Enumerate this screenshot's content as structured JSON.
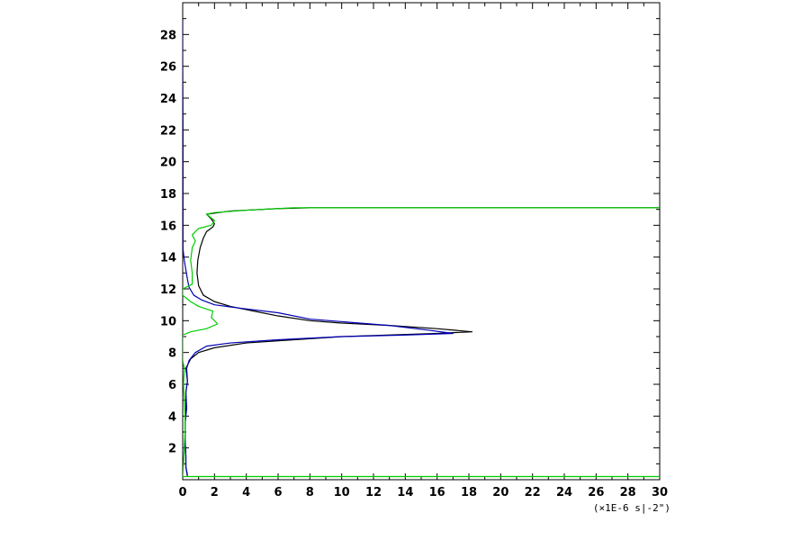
{
  "chart_data": {
    "type": "line",
    "title": "",
    "xlabel": "",
    "ylabel": "",
    "x_unit": "(×1E-6 s|-2\")",
    "xlim": [
      0,
      30
    ],
    "ylim": [
      0,
      30
    ],
    "x_ticks": [
      0,
      2,
      4,
      6,
      8,
      10,
      12,
      14,
      16,
      18,
      20,
      22,
      24,
      26,
      28,
      30
    ],
    "y_ticks": [
      2,
      4,
      6,
      8,
      10,
      12,
      14,
      16,
      18,
      20,
      22,
      24,
      26,
      28
    ],
    "grid": false,
    "colors": {
      "black": "#000000",
      "blue": "#0000b4",
      "green": "#00cc00",
      "axes": "#000000"
    },
    "series": [
      {
        "color": "#000000",
        "points": [
          [
            0.3,
            0.2
          ],
          [
            0.2,
            0.8
          ],
          [
            0.2,
            1.5
          ],
          [
            0.15,
            2.5
          ],
          [
            0.15,
            3.5
          ],
          [
            0.2,
            4.5
          ],
          [
            0.2,
            5.5
          ],
          [
            0.3,
            6.2
          ],
          [
            0.2,
            7.0
          ],
          [
            0.5,
            7.6
          ],
          [
            1.0,
            8.0
          ],
          [
            2.0,
            8.3
          ],
          [
            4.0,
            8.6
          ],
          [
            7.0,
            8.8
          ],
          [
            10.0,
            9.0
          ],
          [
            13.0,
            9.1
          ],
          [
            16.0,
            9.2
          ],
          [
            18.2,
            9.3
          ],
          [
            16.0,
            9.5
          ],
          [
            13.0,
            9.7
          ],
          [
            10.0,
            9.85
          ],
          [
            8.0,
            10.0
          ],
          [
            6.0,
            10.3
          ],
          [
            4.5,
            10.6
          ],
          [
            3.0,
            10.9
          ],
          [
            2.0,
            11.2
          ],
          [
            1.3,
            11.6
          ],
          [
            1.0,
            12.2
          ],
          [
            0.9,
            13.0
          ],
          [
            0.95,
            13.8
          ],
          [
            1.1,
            14.6
          ],
          [
            1.3,
            15.2
          ],
          [
            1.5,
            15.6
          ],
          [
            1.9,
            15.9
          ],
          [
            2.0,
            16.1
          ],
          [
            1.8,
            16.4
          ],
          [
            1.5,
            16.7
          ],
          [
            3.0,
            16.9
          ],
          [
            6.0,
            17.05
          ],
          [
            8.0,
            17.1
          ],
          [
            15.0,
            17.1
          ],
          [
            30.0,
            17.1
          ]
        ]
      },
      {
        "color": "#0000b4",
        "points": [
          [
            0.0,
            29.0
          ],
          [
            0.0,
            26.5
          ],
          [
            0.02,
            22.0
          ],
          [
            0.02,
            14.5
          ],
          [
            0.1,
            13.8
          ],
          [
            0.2,
            13.2
          ],
          [
            0.3,
            12.6
          ],
          [
            0.4,
            12.1
          ],
          [
            0.7,
            11.6
          ],
          [
            1.2,
            11.3
          ],
          [
            2.0,
            11.0
          ],
          [
            3.5,
            10.8
          ],
          [
            6.0,
            10.5
          ],
          [
            8.0,
            10.1
          ],
          [
            10.5,
            9.9
          ],
          [
            13.0,
            9.7
          ],
          [
            15.5,
            9.4
          ],
          [
            17.0,
            9.2
          ],
          [
            14.0,
            9.1
          ],
          [
            10.0,
            9.0
          ],
          [
            6.0,
            8.8
          ],
          [
            3.0,
            8.6
          ],
          [
            1.5,
            8.4
          ],
          [
            0.8,
            8.0
          ],
          [
            0.4,
            7.5
          ],
          [
            0.25,
            7.0
          ],
          [
            0.3,
            6.2
          ],
          [
            0.2,
            5.5
          ],
          [
            0.25,
            4.5
          ],
          [
            0.15,
            3.5
          ],
          [
            0.15,
            2.5
          ],
          [
            0.2,
            1.5
          ],
          [
            0.2,
            0.8
          ],
          [
            0.3,
            0.3
          ]
        ]
      },
      {
        "color": "#00cc00",
        "points": [
          [
            0.0,
            0.2
          ],
          [
            0.05,
            1.0
          ],
          [
            0.1,
            2.0
          ],
          [
            0.15,
            3.0
          ],
          [
            0.15,
            4.0
          ],
          [
            0.1,
            5.0
          ],
          [
            0.05,
            6.0
          ],
          [
            0.1,
            7.0
          ],
          [
            0.0,
            7.5
          ],
          [
            0.0,
            9.1
          ],
          [
            0.5,
            9.3
          ],
          [
            1.5,
            9.5
          ],
          [
            2.2,
            9.8
          ],
          [
            1.8,
            10.2
          ],
          [
            1.9,
            10.6
          ],
          [
            1.0,
            10.9
          ],
          [
            0.5,
            11.2
          ],
          [
            0.0,
            11.6
          ],
          [
            0.0,
            12.0
          ],
          [
            0.6,
            12.3
          ],
          [
            0.6,
            13.0
          ],
          [
            0.5,
            13.8
          ],
          [
            0.6,
            14.6
          ],
          [
            0.8,
            15.0
          ],
          [
            0.6,
            15.4
          ],
          [
            1.0,
            15.8
          ],
          [
            1.8,
            16.0
          ],
          [
            2.0,
            16.3
          ],
          [
            1.5,
            16.7
          ],
          [
            2.0,
            16.8
          ],
          [
            4.0,
            16.95
          ],
          [
            7.0,
            17.1
          ],
          [
            30.0,
            17.1
          ]
        ]
      },
      {
        "color": "#00cc00",
        "points": [
          [
            0.0,
            0.2
          ],
          [
            30.0,
            0.2
          ]
        ]
      }
    ]
  }
}
